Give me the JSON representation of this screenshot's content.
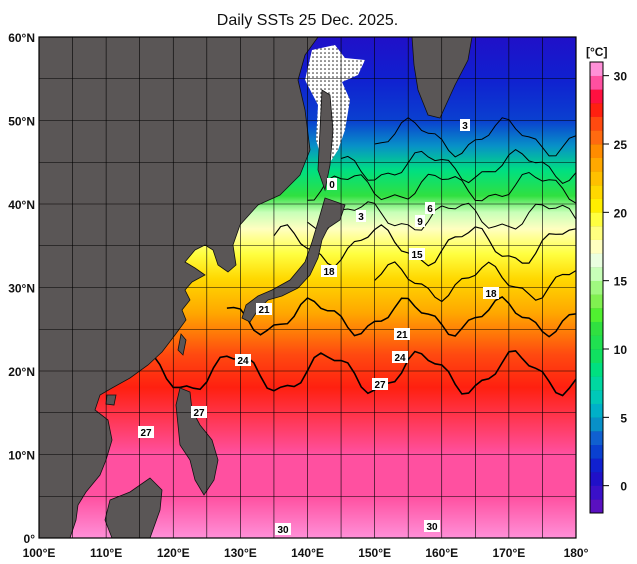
{
  "title": "Daily SSTs 25 Dec. 2025.",
  "map": {
    "lon_range": [
      100,
      180
    ],
    "lat_range": [
      0,
      60
    ],
    "grid_step_deg": 5,
    "lon_labels": [
      "100°E",
      "110°E",
      "120°E",
      "130°E",
      "140°E",
      "150°E",
      "160°E",
      "170°E",
      "180°"
    ],
    "lat_labels": [
      "60°N",
      "50°N",
      "40°N",
      "30°N",
      "20°N",
      "10°N",
      "0°"
    ],
    "land_color": "#5a5656",
    "ice_color": "#ffffff",
    "contour_labels": [
      "0",
      "3",
      "3",
      "6",
      "9",
      "15",
      "18",
      "18",
      "21",
      "21",
      "24",
      "24",
      "27",
      "27",
      "27",
      "30",
      "30"
    ]
  },
  "colorbar": {
    "unit": "[°C]",
    "min": -2,
    "max": 31,
    "tick_labels": [
      "30",
      "25",
      "20",
      "15",
      "10",
      "5",
      "0"
    ],
    "tick_values": [
      30,
      25,
      20,
      15,
      10,
      5,
      0
    ],
    "colors": [
      "#5a10c0",
      "#3a10c8",
      "#2010c8",
      "#1020d0",
      "#0a40d0",
      "#1060d0",
      "#0890c8",
      "#00b0c8",
      "#00c8b8",
      "#00d8a0",
      "#00e080",
      "#10e060",
      "#20e050",
      "#30e040",
      "#50f030",
      "#80f050",
      "#a0f880",
      "#c8ffb8",
      "#eaffe0",
      "#ffffc0",
      "#ffff80",
      "#ffff40",
      "#ffee00",
      "#ffd800",
      "#ffc000",
      "#ffa800",
      "#ff8c00",
      "#ff6a10",
      "#ff4a10",
      "#ff2010",
      "#ff1040",
      "#ff50a0",
      "#ff90d8"
    ]
  }
}
